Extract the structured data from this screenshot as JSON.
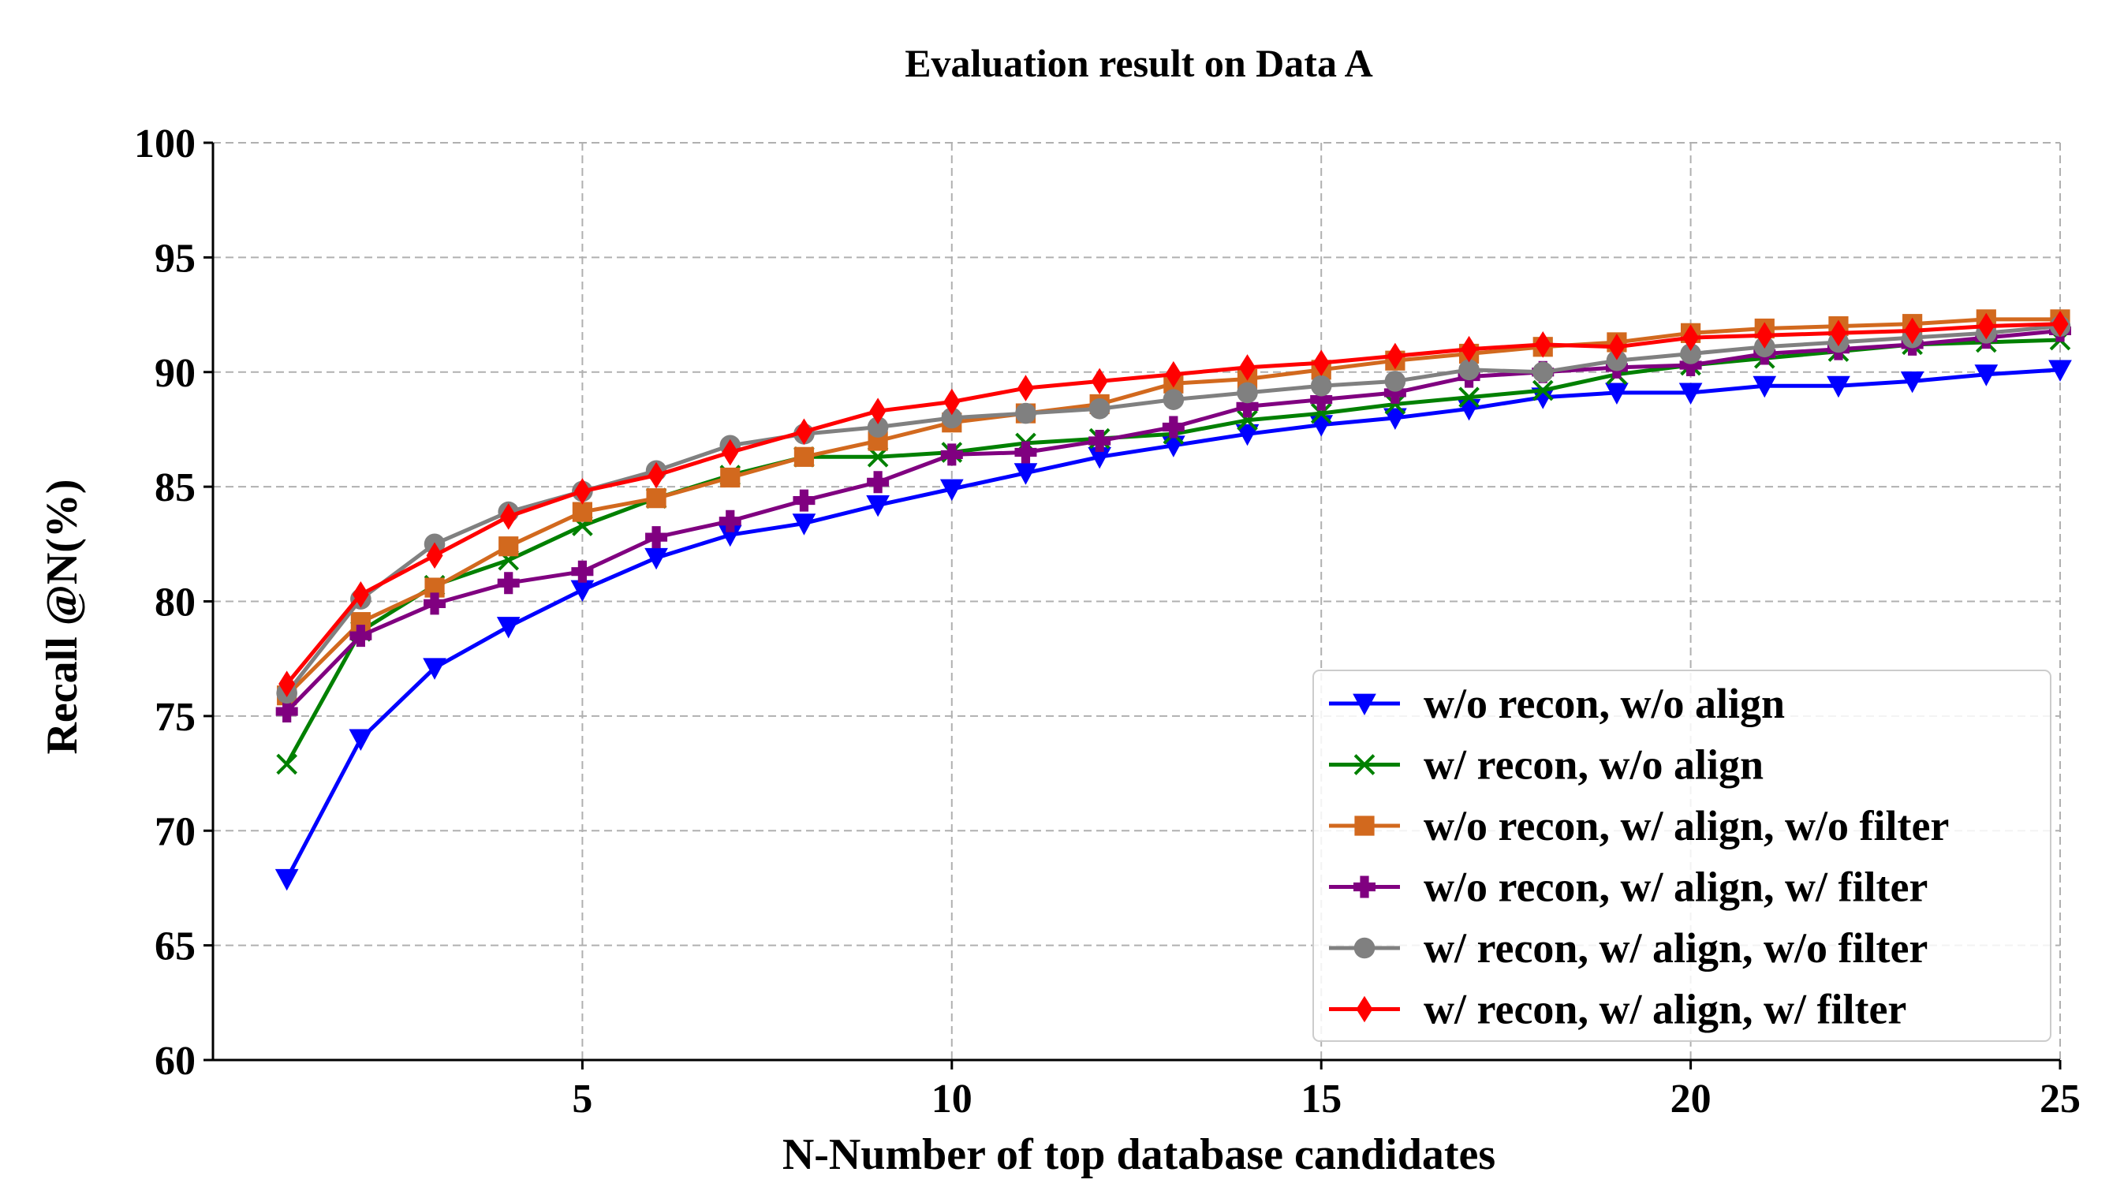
{
  "chart_data": {
    "type": "line",
    "title": "Evaluation result on Data A",
    "xlabel": "N-Number of top database candidates",
    "ylabel": "Recall @N(%)",
    "xlim": [
      0,
      25
    ],
    "ylim": [
      60,
      100
    ],
    "xticks": [
      "5",
      "10",
      "15",
      "20",
      "25"
    ],
    "yticks": [
      "60",
      "65",
      "70",
      "75",
      "80",
      "85",
      "90",
      "95",
      "100"
    ],
    "grid": true,
    "legend_position": "lower-right",
    "x": [
      1,
      2,
      3,
      4,
      5,
      6,
      7,
      8,
      9,
      10,
      11,
      12,
      13,
      14,
      15,
      16,
      17,
      18,
      19,
      20,
      21,
      22,
      23,
      24,
      25
    ],
    "series": [
      {
        "name": "w/o recon, w/o align",
        "color": "#0000ff",
        "marker": "triangle-down",
        "values": [
          67.9,
          74.0,
          77.1,
          78.9,
          80.5,
          81.9,
          82.9,
          83.4,
          84.2,
          84.9,
          85.6,
          86.3,
          86.8,
          87.3,
          87.7,
          88.0,
          88.4,
          88.9,
          89.1,
          89.1,
          89.4,
          89.4,
          89.6,
          89.9,
          90.1
        ]
      },
      {
        "name": "w/ recon, w/o align",
        "color": "#008000",
        "marker": "x",
        "values": [
          72.9,
          78.7,
          80.7,
          81.8,
          83.3,
          84.5,
          85.5,
          86.3,
          86.3,
          86.5,
          86.9,
          87.1,
          87.3,
          87.9,
          88.2,
          88.6,
          88.9,
          89.2,
          89.9,
          90.3,
          90.6,
          90.9,
          91.2,
          91.3,
          91.4
        ]
      },
      {
        "name": "w/o recon, w/ align, w/o filter",
        "color": "#d2691e",
        "marker": "square",
        "values": [
          75.9,
          79.1,
          80.6,
          82.4,
          83.9,
          84.5,
          85.4,
          86.3,
          87.0,
          87.8,
          88.2,
          88.6,
          89.5,
          89.7,
          90.1,
          90.5,
          90.8,
          91.1,
          91.3,
          91.7,
          91.9,
          92.0,
          92.1,
          92.3,
          92.3
        ]
      },
      {
        "name": "w/o recon, w/ align, w/ filter",
        "color": "#800080",
        "marker": "plus",
        "values": [
          75.2,
          78.5,
          79.9,
          80.8,
          81.3,
          82.8,
          83.5,
          84.4,
          85.2,
          86.4,
          86.5,
          87.0,
          87.6,
          88.5,
          88.8,
          89.1,
          89.8,
          90.0,
          90.2,
          90.3,
          90.8,
          91.0,
          91.2,
          91.5,
          91.8
        ]
      },
      {
        "name": "w/ recon, w/ align, w/o filter",
        "color": "#808080",
        "marker": "circle",
        "values": [
          76.0,
          80.1,
          82.5,
          83.9,
          84.8,
          85.7,
          86.8,
          87.3,
          87.6,
          88.0,
          88.2,
          88.4,
          88.8,
          89.1,
          89.4,
          89.6,
          90.1,
          90.0,
          90.5,
          90.8,
          91.1,
          91.3,
          91.5,
          91.7,
          92.0
        ]
      },
      {
        "name": "w/ recon, w/ align, w/ filter",
        "color": "#ff0000",
        "marker": "diamond",
        "values": [
          76.4,
          80.3,
          82.0,
          83.7,
          84.8,
          85.5,
          86.5,
          87.4,
          88.3,
          88.7,
          89.3,
          89.6,
          89.9,
          90.2,
          90.4,
          90.7,
          91.0,
          91.2,
          91.1,
          91.5,
          91.6,
          91.7,
          91.8,
          92.0,
          92.1
        ]
      }
    ]
  }
}
